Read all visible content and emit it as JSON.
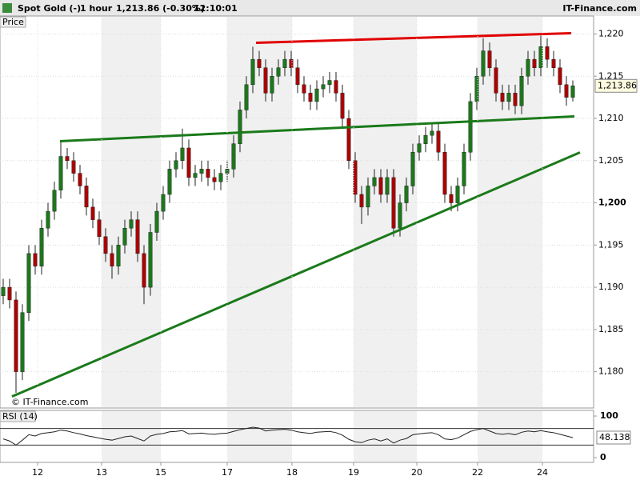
{
  "header": {
    "instrument": "Spot Gold (-)",
    "interval": "1 hour",
    "quote": "1,213.86 (-0.30%)",
    "time": "12:10:01",
    "brand": "IT-Finance.com"
  },
  "chart_data": [
    {
      "type": "candlestick",
      "panel_label": "Price",
      "watermark": "© IT-Finance.com",
      "xlim": [
        -0.5,
        92.25
      ],
      "ylim": [
        1175.7,
        1222.7
      ],
      "yticks": [
        {
          "value": 1180,
          "label": "1,180"
        },
        {
          "value": 1185,
          "label": "1,185"
        },
        {
          "value": 1190,
          "label": "1,190"
        },
        {
          "value": 1195,
          "label": "1,195"
        },
        {
          "value": 1200,
          "label": "1,200"
        },
        {
          "value": 1205,
          "label": "1,205"
        },
        {
          "value": 1210,
          "label": "1,210"
        },
        {
          "value": 1215,
          "label": "1,215"
        },
        {
          "value": 1220,
          "label": "1,220"
        }
      ],
      "grid": true,
      "up_color": "#1a7a1a",
      "down_color": "#b00000",
      "last_price": {
        "value": 1213.86,
        "label": "1,213.86"
      },
      "open": [
        1189,
        1190,
        1188.5,
        1180,
        1187,
        1194,
        1192.5,
        1197,
        1199,
        1201.5,
        1205.5,
        1205,
        1203.5,
        1202,
        1199.5,
        1198,
        1196,
        1194,
        1192.5,
        1195,
        1197,
        1198,
        1194,
        1190,
        1196.5,
        1199,
        1201,
        1204,
        1205,
        1206.5,
        1203,
        1203.5,
        1204,
        1203,
        1202.5,
        1203.5,
        1204,
        1207,
        1211,
        1214,
        1217,
        1216,
        1213,
        1215,
        1216,
        1217,
        1216,
        1214,
        1213,
        1212,
        1213.5,
        1214,
        1214.5,
        1213,
        1210,
        1205,
        1201,
        1199.5,
        1202,
        1203,
        1201,
        1203,
        1197,
        1200,
        1202,
        1206,
        1207,
        1208,
        1208.5,
        1206,
        1201,
        1200,
        1202,
        1206,
        1212,
        1215,
        1218,
        1216,
        1213,
        1212,
        1213,
        1211.5,
        1215,
        1217,
        1216,
        1218.5,
        1217,
        1216,
        1214,
        1212.5
      ],
      "high": [
        1191,
        1191,
        1189.5,
        1188,
        1195,
        1195,
        1198,
        1200,
        1202.5,
        1207.3,
        1206.5,
        1206,
        1204.5,
        1203,
        1200.5,
        1199,
        1197,
        1195,
        1196,
        1198,
        1199,
        1199,
        1195,
        1197.5,
        1200,
        1202,
        1205,
        1206,
        1208.8,
        1207.5,
        1204.5,
        1205,
        1205,
        1204,
        1204.5,
        1205,
        1208,
        1212,
        1215,
        1218.5,
        1218,
        1217,
        1216,
        1217,
        1218,
        1218,
        1217,
        1215,
        1214,
        1214.5,
        1215,
        1215.5,
        1215.5,
        1214,
        1211,
        1206,
        1202,
        1203,
        1204,
        1204,
        1204,
        1204,
        1201,
        1203,
        1207,
        1208,
        1209,
        1209.5,
        1209.5,
        1207,
        1202,
        1203,
        1207,
        1213,
        1216,
        1219.5,
        1219,
        1217,
        1214,
        1214,
        1214,
        1216,
        1218,
        1218,
        1219.8,
        1219.5,
        1218,
        1217,
        1215,
        1214.5
      ],
      "low": [
        1188,
        1187.5,
        1177.5,
        1179,
        1186,
        1191.5,
        1191.5,
        1196,
        1198,
        1200.5,
        1204,
        1202.5,
        1201,
        1198.5,
        1197,
        1195,
        1193,
        1191,
        1191.5,
        1194,
        1196,
        1193,
        1188,
        1189,
        1195.5,
        1198,
        1200,
        1203,
        1204,
        1202,
        1202,
        1202.5,
        1202,
        1201.5,
        1201.5,
        1202.5,
        1203,
        1206,
        1210,
        1213,
        1215,
        1212,
        1212,
        1214,
        1215,
        1215,
        1213,
        1212,
        1211,
        1211,
        1212.5,
        1213,
        1212,
        1209,
        1204,
        1200,
        1197.5,
        1198.5,
        1201,
        1200,
        1200,
        1196,
        1196,
        1199,
        1201,
        1205,
        1206,
        1207,
        1205,
        1200,
        1199,
        1199,
        1201,
        1205,
        1211,
        1214,
        1215,
        1212,
        1211,
        1211,
        1210.5,
        1210.5,
        1214,
        1215,
        1215,
        1216,
        1215,
        1213,
        1211.5,
        1212
      ],
      "close": [
        1190,
        1188.5,
        1180,
        1187,
        1194,
        1192.5,
        1197,
        1199,
        1201.5,
        1205.5,
        1205,
        1203.5,
        1202,
        1199.5,
        1198,
        1196,
        1194,
        1192.5,
        1195,
        1197,
        1198,
        1194,
        1190,
        1196.5,
        1199,
        1201,
        1204,
        1205,
        1206.5,
        1203,
        1203.5,
        1204,
        1203,
        1202.5,
        1203.5,
        1204,
        1207,
        1211,
        1214,
        1217,
        1216,
        1213,
        1215,
        1216,
        1217,
        1216,
        1214,
        1213,
        1212,
        1213.5,
        1214,
        1214.5,
        1213,
        1210,
        1205,
        1201,
        1199.5,
        1202,
        1203,
        1201,
        1203,
        1197,
        1200,
        1202,
        1206,
        1207,
        1208,
        1208.5,
        1206,
        1201,
        1200,
        1202,
        1206,
        1212,
        1215,
        1218,
        1216,
        1213,
        1212,
        1213,
        1211.5,
        1215,
        1217,
        1216,
        1218.5,
        1217,
        1216,
        1214,
        1212.5,
        1213.86
      ],
      "trendlines": [
        {
          "color": "#e00000",
          "x": [
            39.5,
            88.75
          ],
          "y": [
            1218.96,
            1220.1
          ]
        },
        {
          "color": "#1a7a1a",
          "x": [
            8.875,
            89.25
          ],
          "y": [
            1207.3,
            1210.24
          ]
        },
        {
          "color": "#1a7a1a",
          "x": [
            1.375,
            90.125
          ],
          "y": [
            1177.06,
            1205.97
          ]
        }
      ]
    },
    {
      "type": "line",
      "panel_label": "RSI (14)",
      "xlim": [
        -0.5,
        92.25
      ],
      "ylim": [
        -11.5,
        113.5
      ],
      "yticks": [
        0,
        100
      ],
      "levels": [
        30,
        70
      ],
      "color": "#222222",
      "last_value": 48.138,
      "xticks": [
        {
          "value": 5.375,
          "label": "12"
        },
        {
          "value": 15.375,
          "label": "13"
        },
        {
          "value": 24.625,
          "label": "15"
        },
        {
          "value": 35,
          "label": "17"
        },
        {
          "value": 45.125,
          "label": "18"
        },
        {
          "value": 54.75,
          "label": "19"
        },
        {
          "value": 64.625,
          "label": "20"
        },
        {
          "value": 74.125,
          "label": "22"
        },
        {
          "value": 84.25,
          "label": "24"
        }
      ],
      "values": [
        45,
        40,
        30,
        42,
        55,
        52,
        58,
        60,
        62,
        66,
        64,
        60,
        57,
        53,
        50,
        47,
        44,
        42,
        46,
        50,
        52,
        46,
        40,
        52,
        56,
        58,
        62,
        63,
        65,
        57,
        58,
        59,
        57,
        56,
        58,
        59,
        63,
        67,
        70,
        73,
        71,
        64,
        66,
        67,
        68,
        66,
        62,
        60,
        58,
        61,
        62,
        63,
        60,
        54,
        44,
        38,
        36,
        42,
        45,
        40,
        45,
        35,
        42,
        46,
        55,
        57,
        59,
        60,
        55,
        45,
        43,
        47,
        55,
        63,
        67,
        70,
        64,
        58,
        56,
        58,
        55,
        61,
        64,
        62,
        65,
        62,
        60,
        56,
        52,
        48.138
      ]
    }
  ]
}
